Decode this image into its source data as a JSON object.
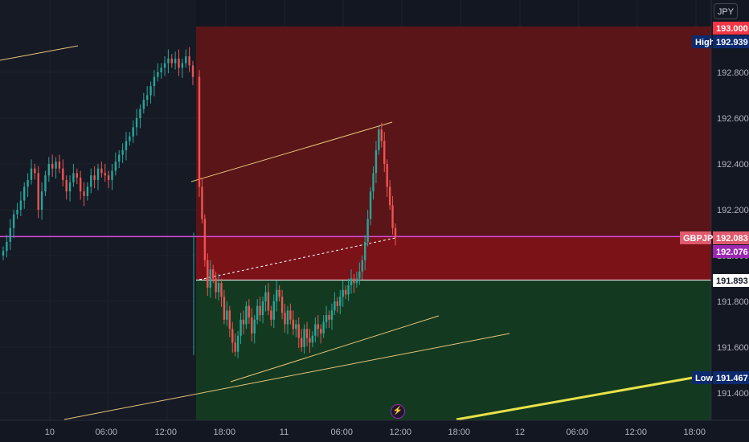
{
  "currency_button": "JPY",
  "event_icon": "lightning-icon",
  "colors": {
    "background": "#131722",
    "session_shade": "#161a25",
    "up_candle": "#26a69a",
    "down_candle": "#ef5350",
    "stop_zone": "#5a1518",
    "entry_zone": "#7a1218",
    "target_zone": "#133a20",
    "trendline": "#e6c27a",
    "thick_trendline": "#e8e24a",
    "symbol_line": "#d64ad8",
    "grid": "#1e222d"
  },
  "chart_data": {
    "type": "candlestick",
    "symbol": "GBPJPY",
    "y_axis": {
      "ticks": [
        "191.400",
        "191.600",
        "191.800",
        "192.000",
        "192.200",
        "192.400",
        "192.600",
        "192.800"
      ],
      "range": [
        191.36,
        193.05
      ],
      "scale": "linear"
    },
    "x_axis": {
      "ticks": [
        "10",
        "06:00",
        "12:00",
        "18:00",
        "11",
        "06:00",
        "12:00",
        "18:00",
        "12",
        "06:00",
        "12:00",
        "18:00"
      ]
    },
    "price_labels": {
      "symbol": {
        "name": "GBPJPY",
        "value": "192.083"
      },
      "last": {
        "value": "192.076"
      },
      "high": {
        "name": "High",
        "value": "192.939"
      },
      "low": {
        "name": "Low",
        "value": "191.467"
      },
      "stop": {
        "value": "193.000"
      },
      "entry": {
        "value": "191.893"
      }
    },
    "position_tool": {
      "stop": 193.0,
      "entry": 192.08,
      "target_top": 191.893,
      "target_bottom": 191.36
    },
    "candles_close": [
      192.02,
      192.06,
      192.12,
      192.18,
      192.2,
      192.24,
      192.3,
      192.33,
      192.38,
      192.36,
      192.2,
      192.28,
      192.35,
      192.4,
      192.38,
      192.41,
      192.38,
      192.33,
      192.28,
      192.32,
      192.36,
      192.34,
      192.28,
      192.26,
      192.3,
      192.35,
      192.33,
      192.38,
      192.36,
      192.35,
      192.33,
      192.37,
      192.41,
      192.44,
      192.46,
      192.5,
      192.52,
      192.56,
      192.6,
      192.64,
      192.68,
      192.7,
      192.74,
      192.78,
      192.8,
      192.82,
      192.84,
      192.86,
      192.84,
      192.86,
      192.82,
      192.84,
      192.87,
      192.83,
      192.78,
      192.3,
      192.16,
      191.98,
      191.86,
      191.94,
      191.9,
      191.84,
      191.88,
      191.82,
      191.72,
      191.76,
      191.68,
      191.62,
      191.58,
      191.65,
      191.72,
      191.7,
      191.78,
      191.73,
      191.66,
      191.72,
      191.78,
      191.74,
      191.8,
      191.84,
      191.76,
      191.72,
      191.8,
      191.85,
      191.82,
      191.75,
      191.7,
      191.76,
      191.72,
      191.68,
      191.7,
      191.64,
      191.6,
      191.68,
      191.64,
      191.62,
      191.65,
      191.7,
      191.68,
      191.66,
      191.71,
      191.74,
      191.72,
      191.76,
      191.8,
      191.78,
      191.82,
      191.85,
      191.83,
      191.87,
      191.9,
      191.88,
      191.9,
      191.93,
      191.98,
      192.06,
      192.16,
      192.28,
      192.36,
      192.46,
      192.55,
      192.5,
      192.4,
      192.3,
      192.22,
      192.12,
      192.08
    ]
  }
}
